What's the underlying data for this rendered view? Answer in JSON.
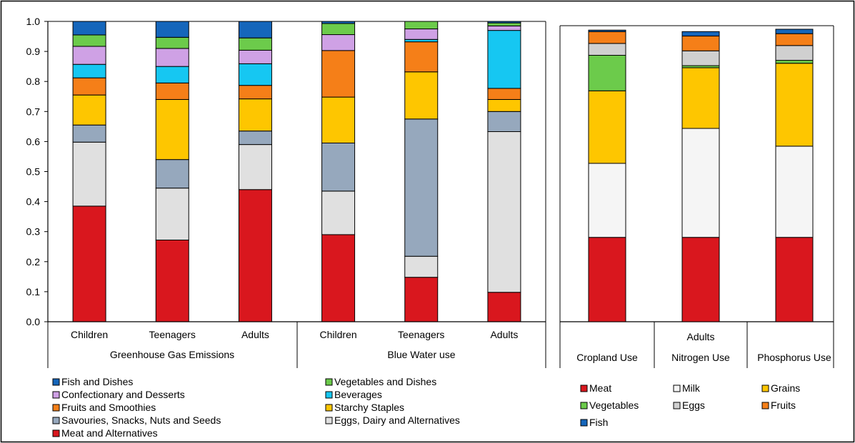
{
  "colors": {
    "meat": "#d9171e",
    "eggs_dairy": "#e0e0e0",
    "savouries": "#96a8bd",
    "starchy": "#fec600",
    "fruits": "#f57f18",
    "beverages": "#16c7f2",
    "confectionary": "#cfa1e5",
    "vegetables": "#6ccb4b",
    "fish": "#1566bb",
    "milk": "#f5f5f5",
    "grains": "#fec600",
    "eggs_right": "#d0d0d0"
  },
  "chart_data": [
    {
      "type": "bar",
      "stacked": true,
      "ylim": [
        0,
        1.0
      ],
      "yticks": [
        "0.0",
        "0.1",
        "0.2",
        "0.3",
        "0.4",
        "0.5",
        "0.6",
        "0.7",
        "0.8",
        "0.9",
        "1.0"
      ],
      "categories": [
        "Children",
        "Teenagers",
        "Adults",
        "Children",
        "Teenagers",
        "Adults"
      ],
      "groups": [
        "Greenhouse Gas Emissions",
        "Blue Water use"
      ],
      "grid": false,
      "legend_position": "bottom",
      "series": [
        {
          "name": "Meat and Alternatives",
          "color_key": "meat",
          "values": [
            0.385,
            0.272,
            0.44,
            0.29,
            0.148,
            0.098
          ]
        },
        {
          "name": "Eggs, Dairy and Alternatives",
          "color_key": "eggs_dairy",
          "values": [
            0.213,
            0.173,
            0.15,
            0.145,
            0.07,
            0.535
          ]
        },
        {
          "name": "Savouries, Snacks, Nuts and Seeds",
          "color_key": "savouries",
          "values": [
            0.057,
            0.095,
            0.045,
            0.16,
            0.457,
            0.067
          ]
        },
        {
          "name": "Starchy Staples",
          "color_key": "starchy",
          "values": [
            0.1,
            0.2,
            0.107,
            0.153,
            0.157,
            0.04
          ]
        },
        {
          "name": "Fruits and Smoothies",
          "color_key": "fruits",
          "values": [
            0.057,
            0.055,
            0.045,
            0.155,
            0.1,
            0.037
          ]
        },
        {
          "name": "Beverages",
          "color_key": "beverages",
          "values": [
            0.045,
            0.055,
            0.072,
            0.0,
            0.008,
            0.193
          ]
        },
        {
          "name": "Confectionary and Desserts",
          "color_key": "confectionary",
          "values": [
            0.06,
            0.06,
            0.045,
            0.053,
            0.035,
            0.015
          ]
        },
        {
          "name": "Vegetables and Dishes",
          "color_key": "vegetables",
          "values": [
            0.038,
            0.037,
            0.041,
            0.037,
            0.025,
            0.01
          ]
        },
        {
          "name": "Fish and Dishes",
          "color_key": "fish",
          "values": [
            0.045,
            0.053,
            0.055,
            0.007,
            0.0,
            0.005
          ]
        }
      ]
    },
    {
      "type": "bar",
      "stacked": true,
      "ylim": [
        0,
        1.0
      ],
      "categories": [
        "Cropland Use",
        "Nitrogen Use",
        "Phosphorus Use"
      ],
      "group_label": "Adults",
      "grid": false,
      "legend_position": "bottom",
      "series": [
        {
          "name": "Meat",
          "color_key": "meat",
          "values": [
            0.285,
            0.285,
            0.285
          ]
        },
        {
          "name": "Milk",
          "color_key": "milk",
          "values": [
            0.25,
            0.368,
            0.308
          ]
        },
        {
          "name": "Grains",
          "color_key": "grains",
          "values": [
            0.245,
            0.205,
            0.28
          ]
        },
        {
          "name": "Vegetables",
          "color_key": "vegetables",
          "values": [
            0.12,
            0.007,
            0.01
          ]
        },
        {
          "name": "Eggs",
          "color_key": "eggs_right",
          "values": [
            0.04,
            0.05,
            0.05
          ]
        },
        {
          "name": "Fruits",
          "color_key": "fruits",
          "values": [
            0.04,
            0.05,
            0.04
          ]
        },
        {
          "name": "Fish",
          "color_key": "fish",
          "values": [
            0.005,
            0.015,
            0.015
          ]
        }
      ]
    }
  ]
}
